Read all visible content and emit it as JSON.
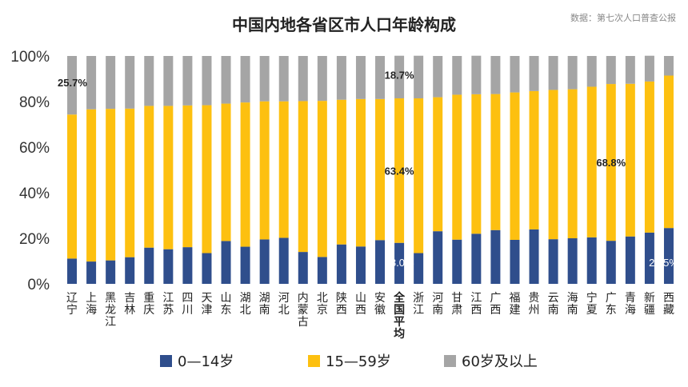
{
  "chart_data": {
    "type": "bar",
    "stacked": true,
    "title": "中国内地各省区市人口年龄构成",
    "source": "数据：第七次人口普查公报",
    "ylim": [
      0,
      100
    ],
    "yticks": [
      "0%",
      "20%",
      "40%",
      "60%",
      "80%",
      "100%"
    ],
    "ytick_values": [
      0,
      20,
      40,
      60,
      80,
      100
    ],
    "grid": false,
    "legend_position": "bottom",
    "categories": [
      "辽宁",
      "上海",
      "黑龙江",
      "吉林",
      "重庆",
      "江苏",
      "四川",
      "天津",
      "山东",
      "湖北",
      "湖南",
      "河北",
      "内蒙古",
      "北京",
      "陕西",
      "山西",
      "安徽",
      "全国平均",
      "浙江",
      "河南",
      "甘肃",
      "江西",
      "广西",
      "福建",
      "贵州",
      "云南",
      "海南",
      "宁夏",
      "广东",
      "青海",
      "新疆",
      "西藏"
    ],
    "highlight_category": "全国平均",
    "series": [
      {
        "name": "0—14岁",
        "color": "#2F4E8C",
        "values": [
          11.1,
          9.8,
          10.3,
          11.7,
          15.9,
          15.2,
          16.1,
          13.5,
          18.8,
          16.3,
          19.5,
          20.2,
          14.0,
          11.8,
          17.3,
          16.4,
          19.2,
          18.0,
          13.5,
          23.1,
          19.4,
          22.0,
          23.6,
          19.3,
          23.9,
          19.6,
          20.0,
          20.4,
          18.9,
          20.8,
          22.5,
          24.5
        ]
      },
      {
        "name": "15—59岁",
        "color": "#FDC010",
        "values": [
          63.2,
          66.8,
          66.5,
          65.2,
          62.2,
          62.9,
          62.2,
          64.9,
          60.3,
          63.3,
          60.6,
          59.9,
          66.2,
          68.5,
          63.5,
          64.7,
          61.9,
          63.4,
          67.9,
          58.8,
          63.6,
          61.2,
          59.7,
          64.7,
          60.7,
          65.5,
          65.4,
          66.1,
          68.8,
          67.0,
          66.3,
          66.9
        ]
      },
      {
        "name": "60岁及以上",
        "color": "#A5A5A5",
        "values": [
          25.7,
          23.4,
          23.2,
          23.1,
          21.9,
          21.9,
          21.7,
          21.6,
          20.9,
          20.4,
          19.9,
          19.9,
          19.8,
          19.7,
          19.2,
          18.9,
          18.9,
          18.7,
          18.7,
          18.1,
          17.0,
          16.9,
          16.7,
          16.0,
          15.4,
          14.9,
          14.6,
          13.5,
          12.3,
          12.2,
          11.3,
          8.6
        ]
      }
    ],
    "annotations": [
      {
        "category": "辽宁",
        "series": "60岁及以上",
        "text": "25.7%"
      },
      {
        "category": "全国平均",
        "series": "60岁及以上",
        "text": "18.7%"
      },
      {
        "category": "全国平均",
        "series": "15—59岁",
        "text": "63.4%"
      },
      {
        "category": "全国平均",
        "series": "0—14岁",
        "text": "18.0%"
      },
      {
        "category": "广东",
        "series": "15—59岁",
        "text": "68.8%"
      },
      {
        "category": "西藏",
        "series": "0—14岁",
        "text": "24.5%"
      }
    ]
  }
}
